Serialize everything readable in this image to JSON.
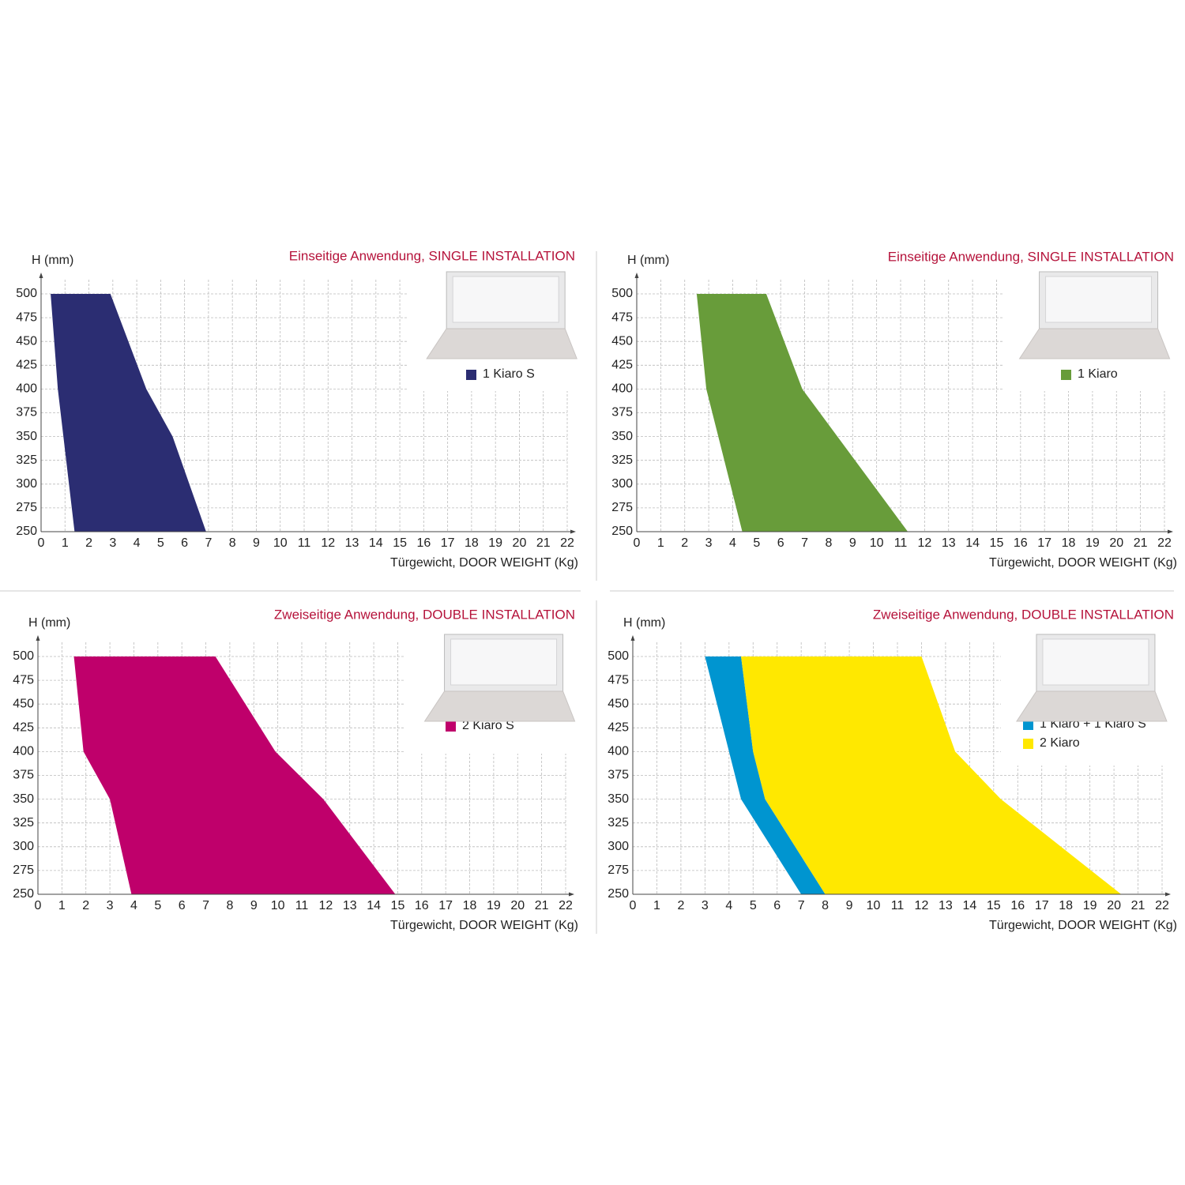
{
  "chart_data": [
    {
      "type": "area",
      "title": "Einseitige Anwendung, SINGLE INSTALLATION",
      "y_label": "H (mm)",
      "x_label": "Türgewicht, DOOR WEIGHT (Kg)",
      "xlim": [
        0,
        22
      ],
      "xticks": [
        0,
        1,
        2,
        3,
        4,
        5,
        6,
        7,
        8,
        9,
        10,
        11,
        12,
        13,
        14,
        15,
        16,
        17,
        18,
        19,
        20,
        21,
        22
      ],
      "ylim": [
        250,
        500
      ],
      "yticks": [
        250,
        275,
        300,
        325,
        350,
        375,
        400,
        425,
        450,
        475,
        500
      ],
      "grid": true,
      "series": [
        {
          "name": "1 Kiaro S",
          "color": "#2b2d72",
          "x": [
            0.4,
            2.9,
            4.4,
            5.5,
            6.9,
            1.4,
            0.7
          ],
          "y": [
            500,
            500,
            400,
            350,
            250,
            250,
            400
          ]
        }
      ]
    },
    {
      "type": "area",
      "title": "Einseitige Anwendung, SINGLE INSTALLATION",
      "y_label": "H (mm)",
      "x_label": "Türgewicht, DOOR WEIGHT (Kg)",
      "xlim": [
        0,
        22
      ],
      "xticks": [
        0,
        1,
        2,
        3,
        4,
        5,
        6,
        7,
        8,
        9,
        10,
        11,
        12,
        13,
        14,
        15,
        16,
        17,
        18,
        19,
        20,
        21,
        22
      ],
      "ylim": [
        250,
        500
      ],
      "yticks": [
        250,
        275,
        300,
        325,
        350,
        375,
        400,
        425,
        450,
        475,
        500
      ],
      "grid": true,
      "series": [
        {
          "name": "1 Kiaro",
          "color": "#689c3a",
          "x": [
            2.5,
            5.4,
            6.9,
            11.3,
            4.4,
            2.9
          ],
          "y": [
            500,
            500,
            400,
            250,
            250,
            400
          ]
        }
      ]
    },
    {
      "type": "area",
      "title": "Zweiseitige Anwendung, DOUBLE INSTALLATION",
      "y_label": "H (mm)",
      "x_label": "Türgewicht, DOOR WEIGHT (Kg)",
      "xlim": [
        0,
        22
      ],
      "xticks": [
        0,
        1,
        2,
        3,
        4,
        5,
        6,
        7,
        8,
        9,
        10,
        11,
        12,
        13,
        14,
        15,
        16,
        17,
        18,
        19,
        20,
        21,
        22
      ],
      "ylim": [
        250,
        500
      ],
      "yticks": [
        250,
        275,
        300,
        325,
        350,
        375,
        400,
        425,
        450,
        475,
        500
      ],
      "grid": true,
      "series": [
        {
          "name": "2 Kiaro S",
          "color": "#bf006b",
          "x": [
            1.5,
            7.4,
            9.9,
            11.9,
            14.9,
            3.9,
            3.0,
            1.9
          ],
          "y": [
            500,
            500,
            400,
            350,
            250,
            250,
            350,
            400
          ]
        }
      ]
    },
    {
      "type": "area",
      "title": "Zweiseitige Anwendung, DOUBLE INSTALLATION",
      "y_label": "H (mm)",
      "x_label": "Türgewicht, DOOR WEIGHT (Kg)",
      "xlim": [
        0,
        22
      ],
      "xticks": [
        0,
        1,
        2,
        3,
        4,
        5,
        6,
        7,
        8,
        9,
        10,
        11,
        12,
        13,
        14,
        15,
        16,
        17,
        18,
        19,
        20,
        21,
        22
      ],
      "ylim": [
        250,
        500
      ],
      "yticks": [
        250,
        275,
        300,
        325,
        350,
        375,
        400,
        425,
        450,
        475,
        500
      ],
      "grid": true,
      "series": [
        {
          "name": "1 Kiaro + 1 Kiaro S",
          "color": "#0095d0",
          "x": [
            3.0,
            4.5,
            5.0,
            5.5,
            8.0,
            7.0,
            4.5
          ],
          "y": [
            500,
            500,
            400,
            350,
            250,
            250,
            350
          ]
        },
        {
          "name": "2 Kiaro",
          "color": "#ffe800",
          "x": [
            4.5,
            12.0,
            13.4,
            15.3,
            20.3,
            8.0,
            5.5,
            5.0
          ],
          "y": [
            500,
            500,
            400,
            350,
            250,
            250,
            350,
            400
          ]
        }
      ]
    }
  ]
}
